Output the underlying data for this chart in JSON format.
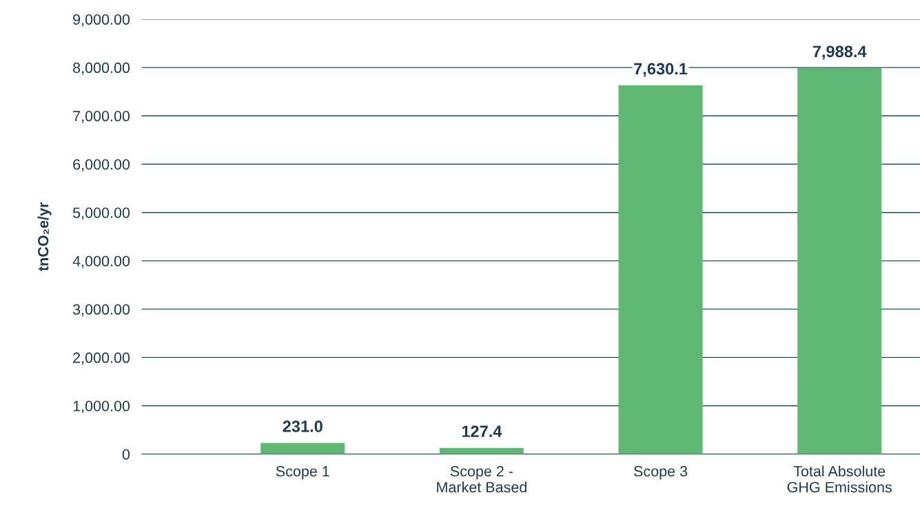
{
  "chart_data": {
    "type": "bar",
    "ylabel": "tnCO₂e/yr",
    "categories": [
      "Scope 1",
      "Scope 2 -\nMarket Based",
      "Scope 3",
      "Total Absolute\nGHG Emissions"
    ],
    "values": [
      231.0,
      127.4,
      7630.1,
      7988.4
    ],
    "value_labels": [
      "231.0",
      "127.4",
      "7,630.1",
      "7,988.4"
    ],
    "color": "#5fb873",
    "ylim": [
      0,
      9000
    ],
    "yticks": [
      0,
      {
        "value": 1000,
        "label": "1,000.00"
      },
      {
        "value": 2000,
        "label": "2,000.00"
      },
      {
        "value": 3000,
        "label": "3,000.00"
      },
      {
        "value": 4000,
        "label": "4,000.00"
      },
      {
        "value": 5000,
        "label": "5,000.00"
      },
      {
        "value": 6000,
        "label": "6,000.00"
      },
      {
        "value": 7000,
        "label": "7,000.00"
      },
      {
        "value": 8000,
        "label": "8,000.00"
      },
      {
        "value": 9000,
        "label": "9,000.00"
      }
    ],
    "grid": "y"
  }
}
